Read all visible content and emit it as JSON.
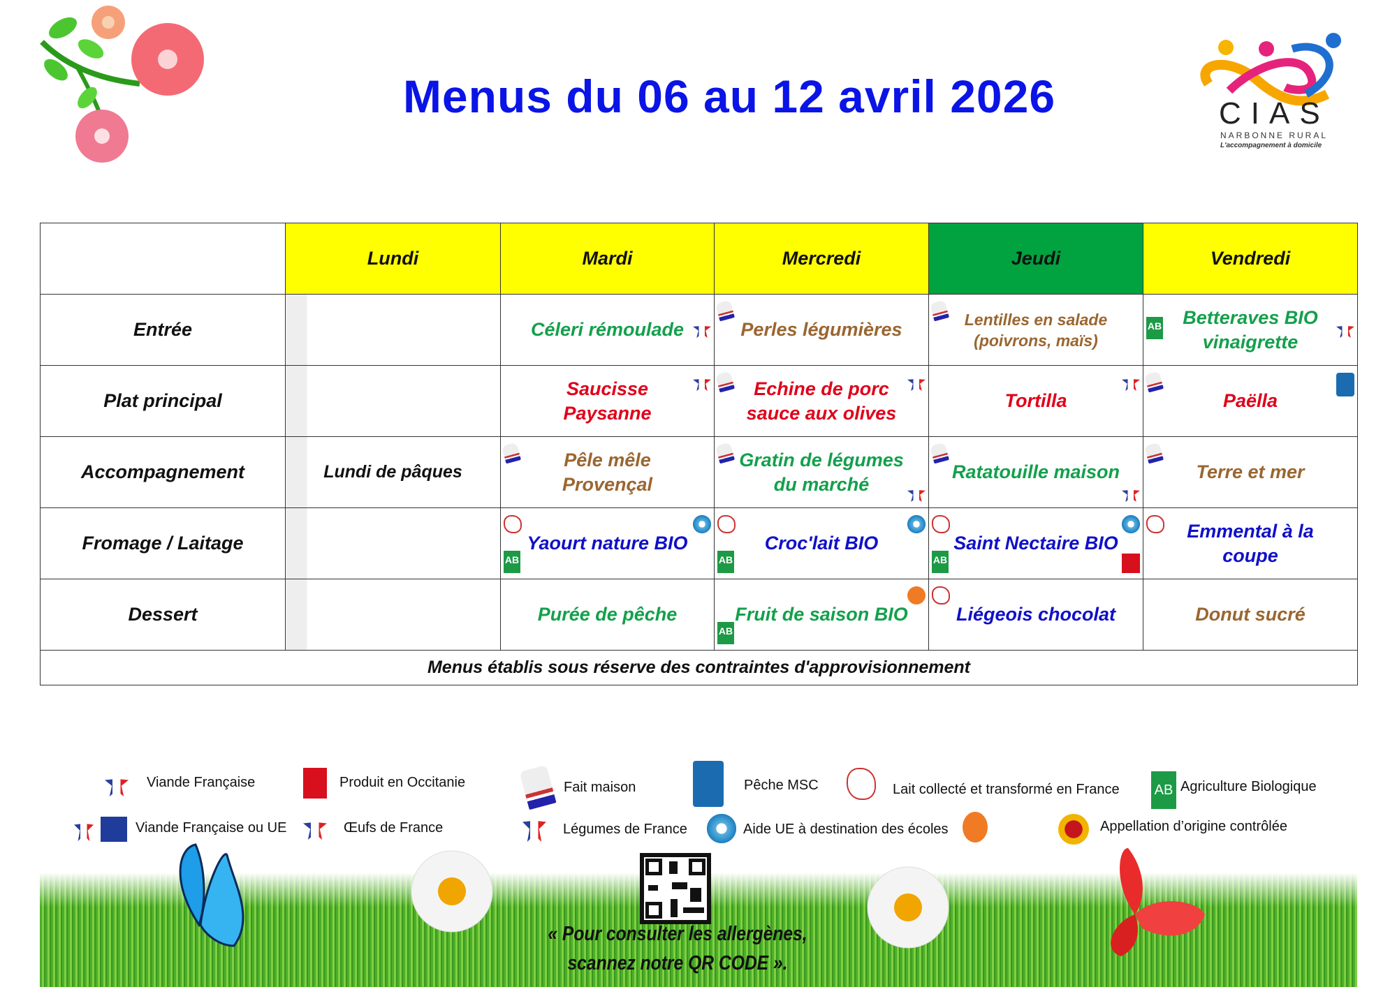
{
  "title": "Menus du 06 au 12 avril 2026",
  "logo": {
    "name": "CIAS",
    "subtitle": "NARBONNE RURAL",
    "tagline": "L'accompagnement à domicile"
  },
  "colors": {
    "title": "#0a14e6",
    "header_yellow": "#ffff00",
    "header_green": "#00a33f",
    "entree_green": "#13a04c",
    "brown": "#9a6630",
    "red": "#e0001a",
    "blue": "#1010c8"
  },
  "table": {
    "days": [
      "Lundi",
      "Mardi",
      "Mercredi",
      "Jeudi",
      "Vendredi"
    ],
    "rows": [
      {
        "label": "Entrée",
        "cells": [
          "",
          "Céleri rémoulade",
          "Perles légumières",
          "Lentilles en salade (poivrons, maïs)",
          "Betteraves BIO vinaigrette"
        ]
      },
      {
        "label": "Plat principal",
        "cells": [
          "",
          "Saucisse Paysanne",
          "Echine de porc sauce aux olives",
          "Tortilla",
          "Paëlla"
        ]
      },
      {
        "label": "Accompagnement",
        "cells": [
          "Lundi de pâques",
          "Pêle  mêle Provençal",
          "Gratin de légumes du marché",
          "Ratatouille maison",
          "Terre et mer"
        ]
      },
      {
        "label": "Fromage / Laitage",
        "cells": [
          "",
          "Yaourt nature BIO",
          "Croc'lait BIO",
          "Saint Nectaire BIO",
          "Emmental à la coupe"
        ]
      },
      {
        "label": "Dessert",
        "cells": [
          "",
          "Purée de pêche",
          "Fruit de saison BIO",
          "Liégeois chocolat",
          "Donut sucré"
        ]
      }
    ],
    "note": "Menus établis sous réserve des contraintes d'approvisionnement"
  },
  "legend": [
    {
      "icon": "viande-francaise-icon",
      "label": "Viande Française"
    },
    {
      "icon": "occitanie-icon",
      "label": "Produit en Occitanie"
    },
    {
      "icon": "fait-maison-icon",
      "label": "Fait maison"
    },
    {
      "icon": "msc-icon",
      "label": "Pêche MSC"
    },
    {
      "icon": "lait-france-icon",
      "label": "Lait collecté et transformé en France"
    },
    {
      "icon": "ab-icon",
      "label": "Agriculture Biologique"
    },
    {
      "icon": "viande-ue-icon",
      "label": "Viande Française ou UE"
    },
    {
      "icon": "oeufs-france-icon",
      "label": "Œufs de France"
    },
    {
      "icon": "legumes-france-icon",
      "label": "Légumes de France"
    },
    {
      "icon": "aide-ue-icon",
      "label": "Aide UE à destination des écoles"
    },
    {
      "icon": "aoc-icon",
      "label": "Appellation d’origine contrôlée"
    }
  ],
  "qr_caption": [
    "« Pour consulter les allergènes,",
    "scannez notre QR CODE »."
  ]
}
